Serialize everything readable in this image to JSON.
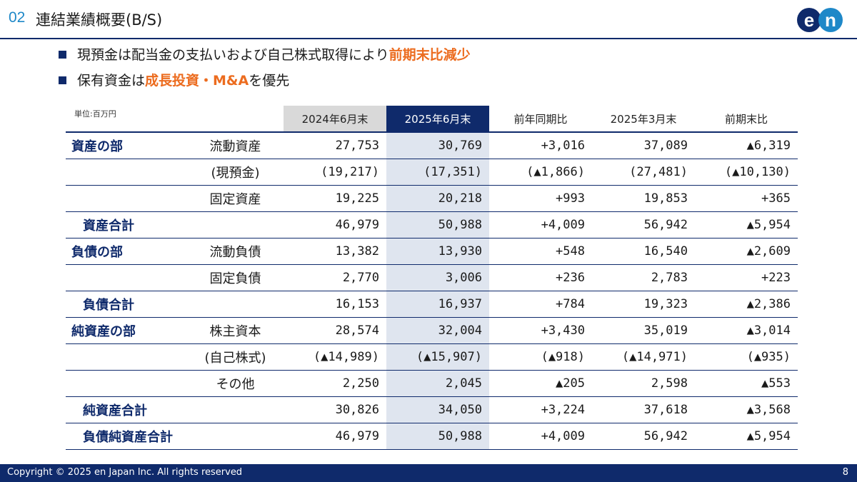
{
  "header": {
    "section_number": "02",
    "title": "連結業績概要(B/S)",
    "logo_text": "en",
    "colors": {
      "navy": "#0f2a6b",
      "accent_blue": "#1e88c8",
      "orange": "#ec6c1f"
    }
  },
  "bullets": [
    {
      "plain": "現預金は配当金の支払いおよび自己株式取得により",
      "highlight": "前期末比減少",
      "tail": ""
    },
    {
      "plain": "保有資金は",
      "highlight": "成長投資・M&A",
      "tail": "を優先"
    }
  ],
  "table": {
    "unit": "単位:百万円",
    "headers": [
      "2024年6月末",
      "2025年6月末",
      "前年同期比",
      "2025年3月末",
      "前期末比"
    ],
    "rows": [
      {
        "section": "資産の部",
        "item": "流動資産",
        "values": [
          "27,753",
          "30,769",
          "+3,016",
          "37,089",
          "▲6,319"
        ]
      },
      {
        "section": "",
        "item": "(現預金)",
        "values": [
          "(19,217)",
          "(17,351)",
          "(▲1,866)",
          "(27,481)",
          "(▲10,130)"
        ]
      },
      {
        "section": "",
        "item": "固定資産",
        "values": [
          "19,225",
          "20,218",
          "+993",
          "19,853",
          "+365"
        ]
      },
      {
        "section": "資産合計",
        "item": "",
        "values": [
          "46,979",
          "50,988",
          "+4,009",
          "56,942",
          "▲5,954"
        ]
      },
      {
        "section": "負債の部",
        "item": "流動負債",
        "values": [
          "13,382",
          "13,930",
          "+548",
          "16,540",
          "▲2,609"
        ]
      },
      {
        "section": "",
        "item": "固定負債",
        "values": [
          "2,770",
          "3,006",
          "+236",
          "2,783",
          "+223"
        ]
      },
      {
        "section": "負債合計",
        "item": "",
        "values": [
          "16,153",
          "16,937",
          "+784",
          "19,323",
          "▲2,386"
        ]
      },
      {
        "section": "純資産の部",
        "item": "株主資本",
        "values": [
          "28,574",
          "32,004",
          "+3,430",
          "35,019",
          "▲3,014"
        ]
      },
      {
        "section": "",
        "item": "(自己株式)",
        "values": [
          "(▲14,989)",
          "(▲15,907)",
          "(▲918)",
          "(▲14,971)",
          "(▲935)"
        ]
      },
      {
        "section": "",
        "item": "その他",
        "values": [
          "2,250",
          "2,045",
          "▲205",
          "2,598",
          "▲553"
        ]
      },
      {
        "section": "純資産合計",
        "item": "",
        "values": [
          "30,826",
          "34,050",
          "+3,224",
          "37,618",
          "▲3,568"
        ]
      },
      {
        "section": "負債純資産合計",
        "item": "",
        "values": [
          "46,979",
          "50,988",
          "+4,009",
          "56,942",
          "▲5,954"
        ]
      }
    ]
  },
  "footer": {
    "copyright": "Copyright © 2025 en Japan Inc. All rights reserved",
    "page_number": "8"
  }
}
